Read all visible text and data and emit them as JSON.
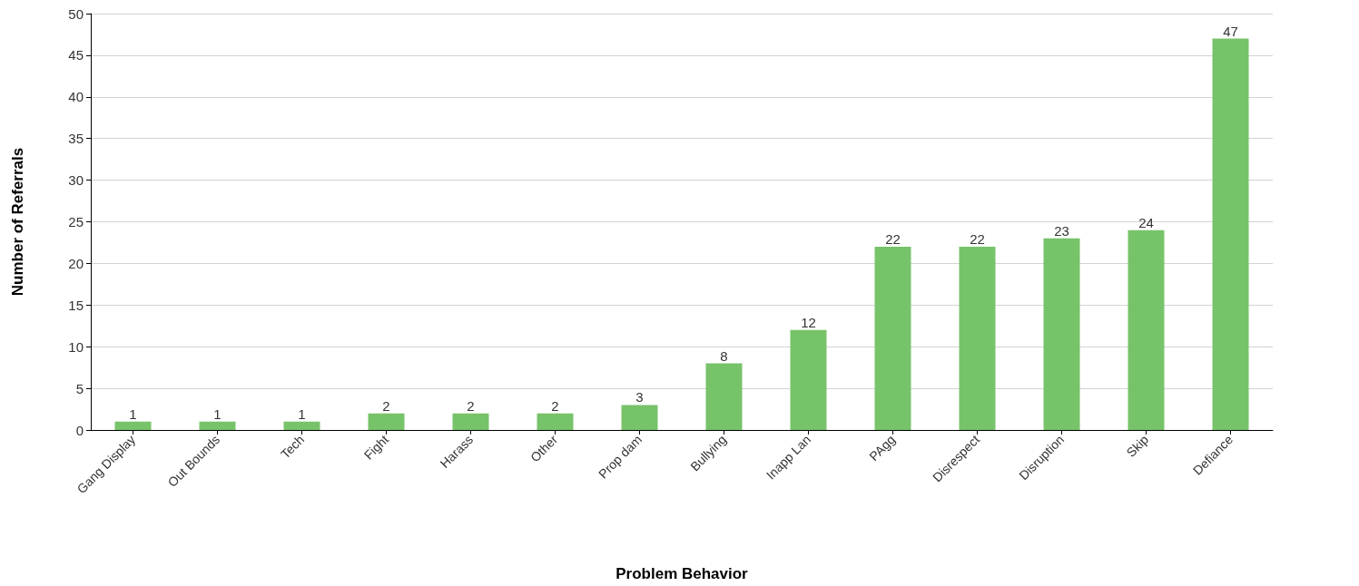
{
  "chart_data": {
    "type": "bar",
    "xlabel": "Problem Behavior",
    "ylabel": "Number of Referrals",
    "categories": [
      "Gang Display",
      "Out Bounds",
      "Tech",
      "Fight",
      "Harass",
      "Other",
      "Prop dam",
      "Bullying",
      "Inapp Lan",
      "PAgg",
      "Disrespect",
      "Disruption",
      "Skip",
      "Defiance"
    ],
    "values": [
      1,
      1,
      1,
      2,
      2,
      2,
      3,
      8,
      12,
      22,
      22,
      23,
      24,
      47
    ],
    "color": "#77c36a",
    "ylim": [
      0,
      50
    ],
    "yticks": [
      0,
      5,
      10,
      15,
      20,
      25,
      30,
      35,
      40,
      45,
      50
    ],
    "grid": "y",
    "data_labels": true
  }
}
